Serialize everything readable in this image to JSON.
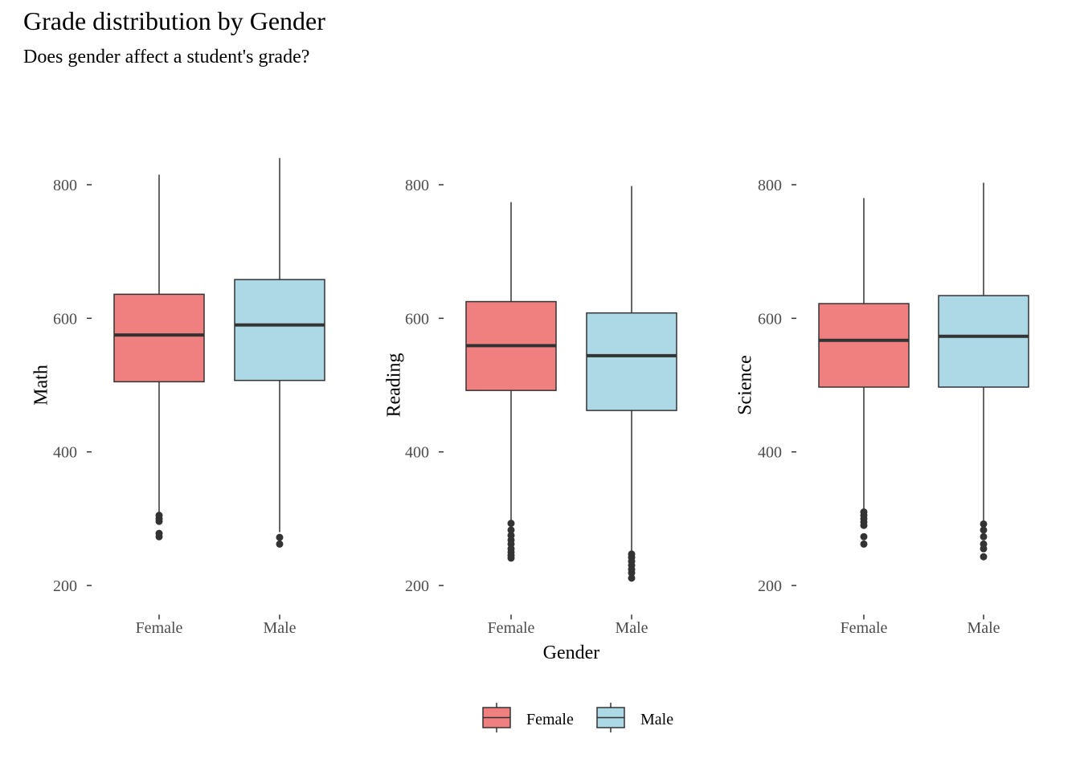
{
  "title": "Grade distribution by Gender",
  "subtitle": "Does gender affect a student's grade?",
  "colors": {
    "Female": "#f08080",
    "Male": "#add8e6",
    "outline": "#333333",
    "median": "#333333"
  },
  "chart_data": {
    "type": "boxplot",
    "xlabel": "Gender",
    "categories": [
      "Female",
      "Male"
    ],
    "yticks": [
      200,
      400,
      600,
      800
    ],
    "ylim": [
      160,
      845
    ],
    "grid": false,
    "legend": {
      "position": "bottom",
      "entries": [
        "Female",
        "Male"
      ]
    },
    "panels": [
      {
        "ylabel": "Math",
        "boxes": [
          {
            "group": "Female",
            "whisker_low": 310,
            "q1": 505,
            "median": 575,
            "q3": 636,
            "whisker_high": 815,
            "outliers": [
              305,
              300,
              296,
              278,
              273
            ]
          },
          {
            "group": "Male",
            "whisker_low": 280,
            "q1": 507,
            "median": 590,
            "q3": 658,
            "whisker_high": 840,
            "outliers": [
              272,
              262
            ]
          }
        ]
      },
      {
        "ylabel": "Reading",
        "boxes": [
          {
            "group": "Female",
            "whisker_low": 298,
            "q1": 492,
            "median": 559,
            "q3": 625,
            "whisker_high": 774,
            "outliers": [
              293,
              283,
              275,
              268,
              262,
              255,
              250,
              245,
              241
            ]
          },
          {
            "group": "Male",
            "whisker_low": 250,
            "q1": 462,
            "median": 544,
            "q3": 608,
            "whisker_high": 798,
            "outliers": [
              247,
              242,
              236,
              230,
              224,
              219,
              211
            ]
          }
        ]
      },
      {
        "ylabel": "Science",
        "boxes": [
          {
            "group": "Female",
            "whisker_low": 313,
            "q1": 497,
            "median": 567,
            "q3": 622,
            "whisker_high": 780,
            "outliers": [
              310,
              305,
              300,
              295,
              290,
              273,
              262
            ]
          },
          {
            "group": "Male",
            "whisker_low": 295,
            "q1": 497,
            "median": 573,
            "q3": 634,
            "whisker_high": 803,
            "outliers": [
              292,
              283,
              273,
              262,
              255,
              243
            ]
          }
        ]
      }
    ]
  }
}
